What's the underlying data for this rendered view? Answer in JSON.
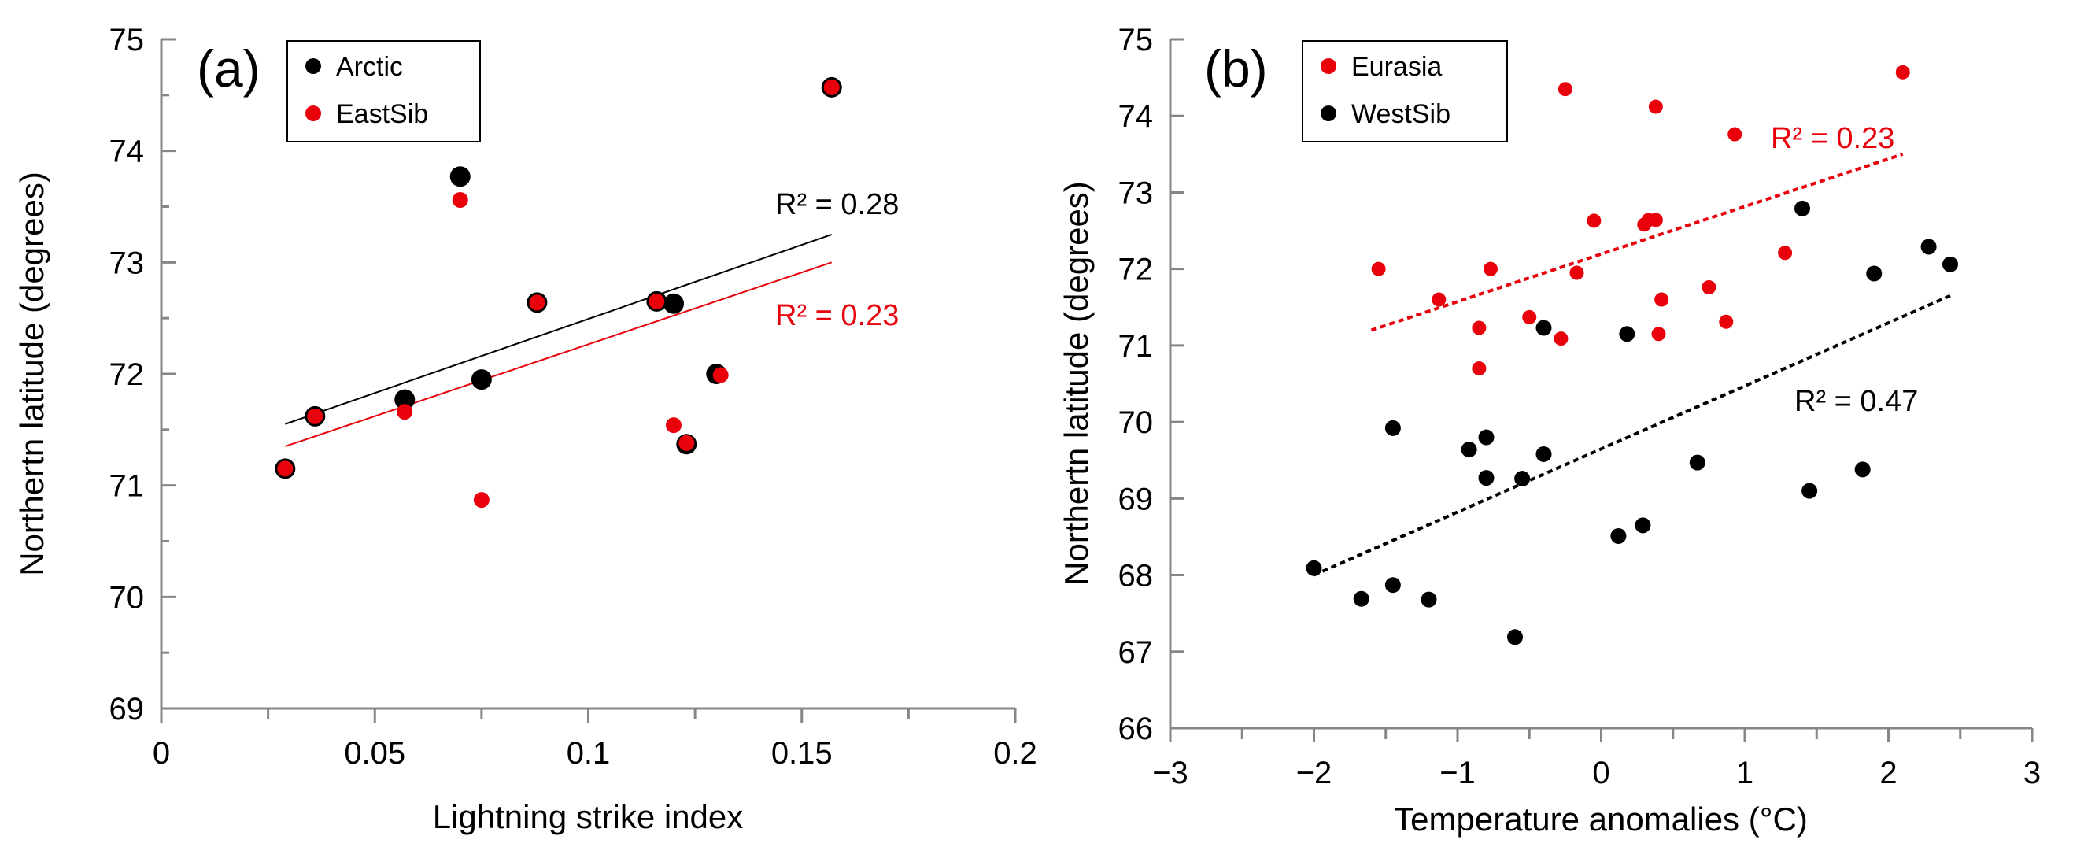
{
  "chart_data": [
    {
      "type": "scatter",
      "panel_label": "(a)",
      "xlabel": "Lightning strike index",
      "ylabel": "Northertn latitude (degrees)",
      "xlim": [
        0,
        0.2
      ],
      "ylim": [
        69,
        75
      ],
      "x_ticks": [
        0,
        0.05,
        0.1,
        0.15,
        0.2
      ],
      "x_tick_labels": [
        "0",
        "0.05",
        "0.1",
        "0.15",
        "0.2"
      ],
      "y_ticks": [
        69,
        70,
        71,
        72,
        73,
        74,
        75
      ],
      "y_tick_labels": [
        "69",
        "70",
        "71",
        "72",
        "73",
        "74",
        "75"
      ],
      "grid": false,
      "legend_position": "top-left",
      "series": [
        {
          "name": "Arctic",
          "color": "#000000",
          "points": [
            [
              0.029,
              71.15
            ],
            [
              0.036,
              71.62
            ],
            [
              0.057,
              71.77
            ],
            [
              0.07,
              73.77
            ],
            [
              0.075,
              71.95
            ],
            [
              0.088,
              72.64
            ],
            [
              0.116,
              72.65
            ],
            [
              0.12,
              72.63
            ],
            [
              0.123,
              71.37
            ],
            [
              0.13,
              72.0
            ],
            [
              0.157,
              74.57
            ]
          ],
          "trendline": {
            "x": [
              0.029,
              0.157
            ],
            "y": [
              71.55,
              73.25
            ],
            "style": "solid",
            "r2_label": "R² = 0.28",
            "r2_color": "#000000"
          }
        },
        {
          "name": "EastSib",
          "color": "#e8000b",
          "points": [
            [
              0.029,
              71.15
            ],
            [
              0.036,
              71.62
            ],
            [
              0.057,
              71.66
            ],
            [
              0.07,
              73.56
            ],
            [
              0.075,
              70.87
            ],
            [
              0.088,
              72.64
            ],
            [
              0.116,
              72.65
            ],
            [
              0.12,
              71.54
            ],
            [
              0.123,
              71.38
            ],
            [
              0.131,
              71.99
            ],
            [
              0.157,
              74.57
            ]
          ],
          "trendline": {
            "x": [
              0.029,
              0.157
            ],
            "y": [
              71.35,
              73.0
            ],
            "style": "solid",
            "r2_label": "R² = 0.23",
            "r2_color": "#e8000b"
          }
        }
      ]
    },
    {
      "type": "scatter",
      "panel_label": "(b)",
      "xlabel": "Temperature anomalies (°C)",
      "ylabel": "Northertn latitude (degrees)",
      "xlim": [
        -3,
        3
      ],
      "ylim": [
        66,
        75
      ],
      "x_ticks": [
        -3,
        -2,
        -1,
        0,
        1,
        2,
        3
      ],
      "x_tick_labels": [
        "−3",
        "−2",
        "−1",
        "0",
        "1",
        "2",
        "3"
      ],
      "y_ticks": [
        66,
        67,
        68,
        69,
        70,
        71,
        72,
        73,
        74,
        75
      ],
      "y_tick_labels": [
        "66",
        "67",
        "68",
        "69",
        "70",
        "71",
        "72",
        "73",
        "74",
        "75"
      ],
      "grid": false,
      "legend_position": "top-left",
      "series": [
        {
          "name": "Eurasia",
          "color": "#e8000b",
          "points": [
            [
              -1.55,
              72.0
            ],
            [
              -1.13,
              71.6
            ],
            [
              -0.85,
              71.23
            ],
            [
              -0.85,
              70.7
            ],
            [
              -0.77,
              72.0
            ],
            [
              -0.5,
              71.37
            ],
            [
              -0.28,
              71.09
            ],
            [
              -0.25,
              74.35
            ],
            [
              -0.17,
              71.95
            ],
            [
              -0.05,
              72.63
            ],
            [
              0.3,
              72.58
            ],
            [
              0.33,
              72.64
            ],
            [
              0.38,
              74.12
            ],
            [
              0.38,
              72.64
            ],
            [
              0.4,
              71.15
            ],
            [
              0.42,
              71.6
            ],
            [
              0.75,
              71.76
            ],
            [
              0.87,
              71.31
            ],
            [
              0.93,
              73.76
            ],
            [
              1.28,
              72.21
            ],
            [
              2.1,
              74.57
            ]
          ],
          "trendline": {
            "x": [
              -1.6,
              2.1
            ],
            "y": [
              71.2,
              73.5
            ],
            "style": "dashed",
            "r2_label": "R² = 0.23",
            "r2_color": "#e8000b"
          }
        },
        {
          "name": "WestSib",
          "color": "#000000",
          "points": [
            [
              -2.0,
              68.09
            ],
            [
              -1.67,
              67.69
            ],
            [
              -1.45,
              69.92
            ],
            [
              -1.45,
              67.87
            ],
            [
              -1.2,
              67.68
            ],
            [
              -0.92,
              69.64
            ],
            [
              -0.8,
              69.8
            ],
            [
              -0.8,
              69.27
            ],
            [
              -0.6,
              67.19
            ],
            [
              -0.55,
              69.26
            ],
            [
              -0.4,
              71.23
            ],
            [
              -0.4,
              69.58
            ],
            [
              0.12,
              68.51
            ],
            [
              0.18,
              71.15
            ],
            [
              0.29,
              68.65
            ],
            [
              0.67,
              69.47
            ],
            [
              1.4,
              72.79
            ],
            [
              1.45,
              69.1
            ],
            [
              1.82,
              69.38
            ],
            [
              1.9,
              71.94
            ],
            [
              2.28,
              72.29
            ],
            [
              2.43,
              72.06
            ]
          ],
          "trendline": {
            "x": [
              -2.0,
              2.43
            ],
            "y": [
              68.0,
              71.65
            ],
            "style": "dashed",
            "r2_label": "R² = 0.47",
            "r2_color": "#000000"
          }
        }
      ]
    }
  ]
}
